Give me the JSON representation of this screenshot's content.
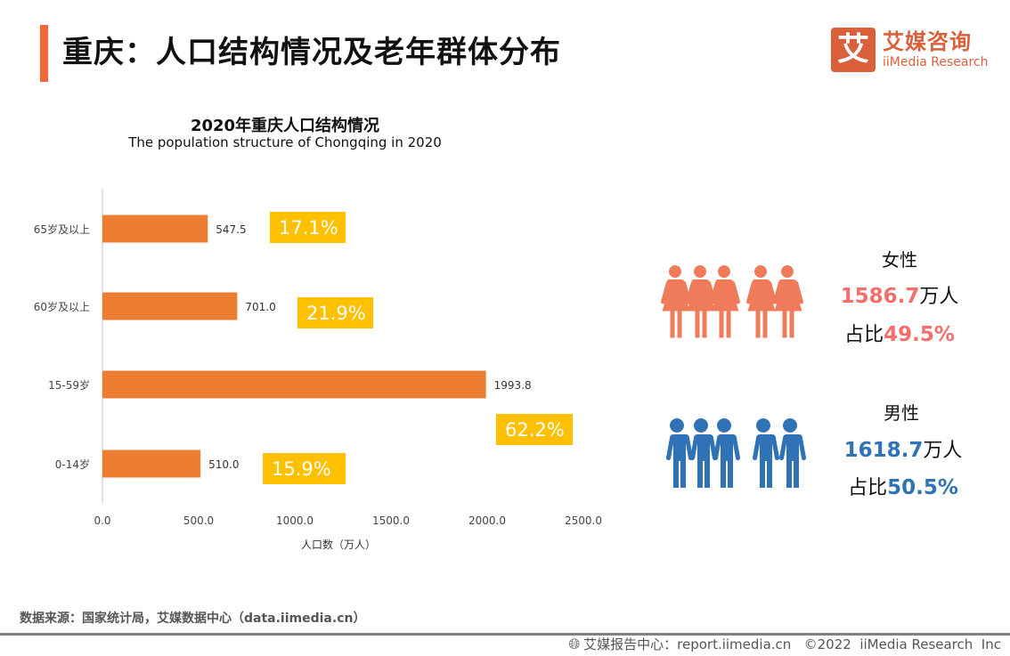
{
  "header": {
    "title": "重庆：人口结构情况及老年群体分布",
    "accent_color": "#f6673a"
  },
  "logo": {
    "glyph": "艾",
    "name_cn": "艾媒咨询",
    "name_en": "iiMedia Research",
    "color": "#d9603b"
  },
  "chart_data": {
    "type": "bar",
    "orientation": "horizontal",
    "title": "2020年重庆人口结构情况",
    "subtitle": "The population structure of Chongqing in 2020",
    "categories": [
      "65岁及以上",
      "60岁及以上",
      "15-59岁",
      "0-14岁"
    ],
    "values": [
      547.5,
      701.0,
      1993.8,
      510.0
    ],
    "value_labels": [
      "547.5",
      "701.0",
      "1993.8",
      "510.0"
    ],
    "percent_labels": [
      "17.1%",
      "21.9%",
      "62.2%",
      "15.9%"
    ],
    "xlabel": "人口数（万人）",
    "ylabel": "",
    "xlim": [
      0,
      2500
    ],
    "xticks": [
      0,
      500,
      1000,
      1500,
      2000,
      2500
    ],
    "xtick_labels": [
      "0.0",
      "500.0",
      "1000.0",
      "1500.0",
      "2000.0",
      "2500.0"
    ],
    "grid": false,
    "bar_color": "#ed7d31",
    "percent_box_color": "#ffc000"
  },
  "gender": {
    "female": {
      "label": "女性",
      "count": "1586.7",
      "count_unit": "万人",
      "ratio_prefix": "占比",
      "ratio": "49.5%",
      "icon": "female-group-icon",
      "color": "#f07b5a"
    },
    "male": {
      "label": "男性",
      "count": "1618.7",
      "count_unit": "万人",
      "ratio_prefix": "占比",
      "ratio": "50.5%",
      "icon": "male-group-icon",
      "color": "#2f73b6"
    }
  },
  "source": "数据来源：国家统计局，艾媒数据中心（data.iimedia.cn）",
  "footer": {
    "icon": "globe-icon",
    "text": "艾媒报告中心：report.iimedia.cn   ©2022  iiMedia Research  Inc"
  }
}
